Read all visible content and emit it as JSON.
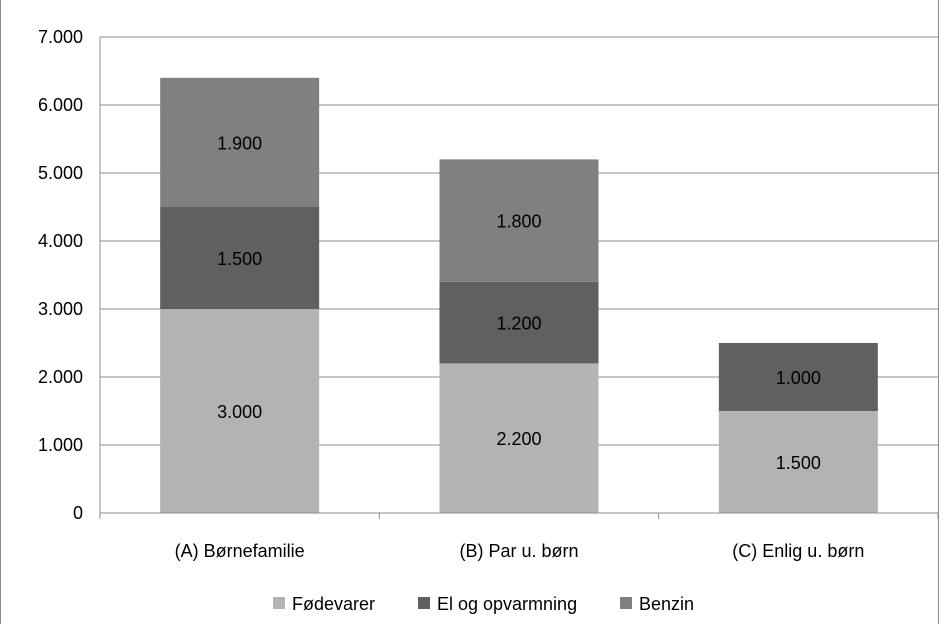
{
  "chart_data": {
    "type": "bar",
    "stacked": true,
    "categories": [
      "(A) Børnefamilie",
      "(B) Par u. børn",
      "(C) Enlig u. børn"
    ],
    "series": [
      {
        "name": "Fødevarer",
        "values": [
          3000,
          2200,
          1500
        ],
        "color": "#b3b3b3"
      },
      {
        "name": "El og opvarmning",
        "values": [
          1500,
          1200,
          1000
        ],
        "color": "#606060"
      },
      {
        "name": "Benzin",
        "values": [
          1900,
          1800,
          null
        ],
        "color": "#808080"
      }
    ],
    "data_labels": [
      [
        "3.000",
        "2.200",
        "1.500"
      ],
      [
        "1.500",
        "1.200",
        "1.000"
      ],
      [
        "1.900",
        "1.800",
        ""
      ]
    ],
    "y_ticks": [
      0,
      1000,
      2000,
      3000,
      4000,
      5000,
      6000,
      7000
    ],
    "y_tick_labels": [
      "0",
      "1.000",
      "2.000",
      "3.000",
      "4.000",
      "5.000",
      "6.000",
      "7.000"
    ],
    "ylim": [
      0,
      7000
    ],
    "title": "",
    "xlabel": "",
    "ylabel": "",
    "grid": true,
    "legend_position": "bottom"
  }
}
